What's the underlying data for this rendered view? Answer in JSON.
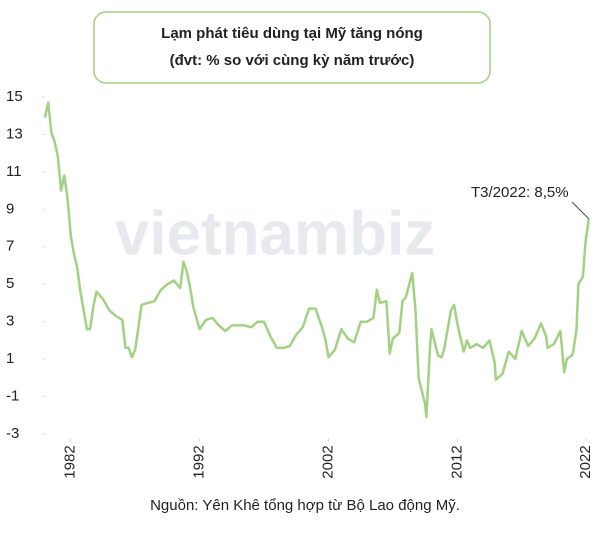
{
  "chart_data": {
    "type": "line",
    "title": "Lạm phát tiêu dùng tại Mỹ tăng nóng",
    "subtitle": "(đvt: % so với cùng kỳ năm trước)",
    "source": "Nguồn: Yên Khê tổng hợp từ Bộ Lao động Mỹ.",
    "watermark": "vietnambiz",
    "annotation": "T3/2022: 8,5%",
    "color": "#a3d183",
    "x": [
      1980.0,
      1980.25,
      1980.5,
      1980.75,
      1981.0,
      1981.25,
      1981.5,
      1981.75,
      1982.0,
      1982.25,
      1982.5,
      1982.75,
      1983.0,
      1983.25,
      1983.5,
      1983.75,
      1984.0,
      1984.5,
      1985.0,
      1985.5,
      1986.0,
      1986.25,
      1986.5,
      1986.75,
      1987.0,
      1987.5,
      1988.0,
      1988.5,
      1989.0,
      1989.5,
      1990.0,
      1990.5,
      1990.75,
      1991.0,
      1991.25,
      1991.5,
      1992.0,
      1992.5,
      1993.0,
      1993.5,
      1994.0,
      1994.5,
      1995.0,
      1995.5,
      1996.0,
      1996.5,
      1997.0,
      1997.5,
      1998.0,
      1998.5,
      1999.0,
      1999.5,
      2000.0,
      2000.5,
      2001.0,
      2001.5,
      2001.75,
      2002.0,
      2002.5,
      2003.0,
      2003.5,
      2004.0,
      2004.5,
      2005.0,
      2005.5,
      2005.75,
      2006.0,
      2006.5,
      2006.75,
      2007.0,
      2007.5,
      2007.75,
      2008.0,
      2008.5,
      2008.75,
      2009.0,
      2009.5,
      2009.6,
      2009.9,
      2010.0,
      2010.5,
      2010.8,
      2011.0,
      2011.5,
      2011.75,
      2012.0,
      2012.5,
      2012.75,
      2013.0,
      2013.5,
      2014.0,
      2014.5,
      2014.9,
      2015.0,
      2015.5,
      2016.0,
      2016.5,
      2017.0,
      2017.5,
      2018.0,
      2018.5,
      2018.9,
      2019.0,
      2019.5,
      2020.0,
      2020.3,
      2020.5,
      2020.9,
      2021.0,
      2021.25,
      2021.4,
      2021.75,
      2021.9,
      2022.0,
      2022.1,
      2022.2
    ],
    "values": [
      13.9,
      14.7,
      13.1,
      12.6,
      11.8,
      10.0,
      10.8,
      9.6,
      7.6,
      6.6,
      5.9,
      4.6,
      3.6,
      2.6,
      2.6,
      3.8,
      4.6,
      4.2,
      3.6,
      3.3,
      3.1,
      1.6,
      1.6,
      1.1,
      1.5,
      3.9,
      4.0,
      4.1,
      4.7,
      5.0,
      5.2,
      4.8,
      6.2,
      5.7,
      4.9,
      3.8,
      2.6,
      3.1,
      3.2,
      2.8,
      2.5,
      2.8,
      2.8,
      2.8,
      2.7,
      3.0,
      3.0,
      2.2,
      1.6,
      1.6,
      1.7,
      2.3,
      2.7,
      3.7,
      3.7,
      2.7,
      2.1,
      1.1,
      1.5,
      2.6,
      2.1,
      1.9,
      3.0,
      3.0,
      3.2,
      4.7,
      4.0,
      4.1,
      1.3,
      2.1,
      2.4,
      4.1,
      4.3,
      5.6,
      3.7,
      0.0,
      -1.4,
      -2.1,
      1.8,
      2.6,
      1.2,
      1.1,
      1.6,
      3.6,
      3.9,
      2.9,
      1.4,
      2.0,
      1.6,
      1.8,
      1.6,
      2.0,
      0.8,
      -0.1,
      0.2,
      1.4,
      1.0,
      2.5,
      1.7,
      2.1,
      2.9,
      2.2,
      1.6,
      1.8,
      2.5,
      0.3,
      1.0,
      1.2,
      1.4,
      2.6,
      5.0,
      5.4,
      6.8,
      7.5,
      7.9,
      8.5
    ],
    "xlim": [
      1980,
      2022.3
    ],
    "xticks": [
      1982,
      1992,
      2002,
      2012,
      2022
    ],
    "ylim": [
      -3,
      15
    ],
    "yticks": [
      15,
      13,
      11,
      9,
      7,
      5,
      3,
      1,
      -1,
      -3
    ],
    "grid": false
  }
}
